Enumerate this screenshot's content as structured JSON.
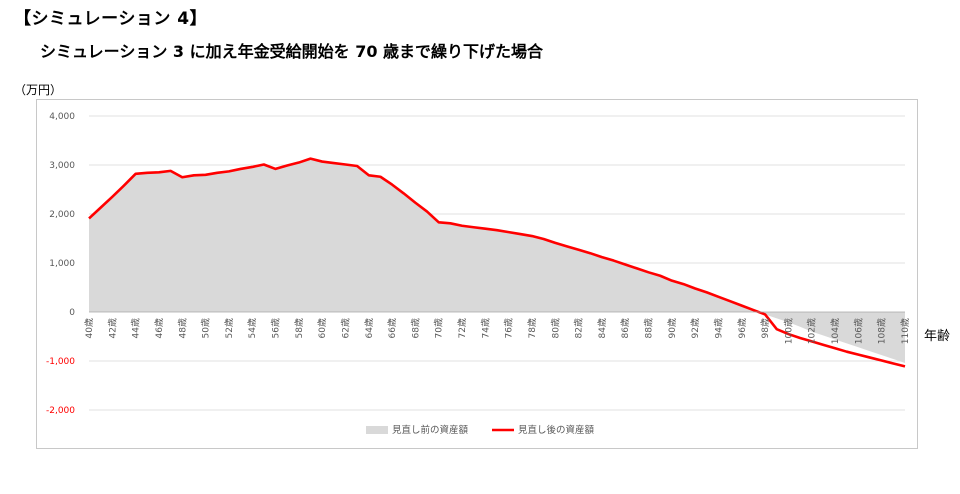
{
  "heading": "【シミュレーション 4】",
  "subheading": "シミュレーション 3 に加え年金受給開始を 70 歳まで繰り下げた場合",
  "chart_data": {
    "type": "area",
    "title": "シミュレーション 3 に加え年金受給開始を 70 歳まで繰り下げた場合",
    "ylabel": "（万円）",
    "xlabel": "年齢",
    "ylim": [
      -2000,
      4000
    ],
    "yticks": [
      4000,
      3000,
      2000,
      1000,
      0,
      -1000,
      -2000
    ],
    "ytick_labels": [
      "4,000",
      "3,000",
      "2,000",
      "1,000",
      "0",
      "-1,000",
      "-2,000"
    ],
    "x": [
      40,
      41,
      42,
      43,
      44,
      45,
      46,
      47,
      48,
      49,
      50,
      51,
      52,
      53,
      54,
      55,
      56,
      57,
      58,
      59,
      60,
      61,
      62,
      63,
      64,
      65,
      66,
      67,
      68,
      69,
      70,
      71,
      72,
      73,
      74,
      75,
      76,
      77,
      78,
      79,
      80,
      81,
      82,
      83,
      84,
      85,
      86,
      87,
      88,
      89,
      90,
      91,
      92,
      93,
      94,
      95,
      96,
      97,
      98,
      99,
      100,
      101,
      102,
      103,
      104,
      105,
      106,
      107,
      108,
      109,
      110
    ],
    "xtick_labels": [
      "40歳",
      "42歳",
      "44歳",
      "46歳",
      "48歳",
      "50歳",
      "52歳",
      "54歳",
      "56歳",
      "58歳",
      "60歳",
      "62歳",
      "64歳",
      "66歳",
      "68歳",
      "70歳",
      "72歳",
      "74歳",
      "76歳",
      "78歳",
      "80歳",
      "82歳",
      "84歳",
      "86歳",
      "88歳",
      "90歳",
      "92歳",
      "94歳",
      "96歳",
      "98歳",
      "100歳",
      "102歳",
      "104歳",
      "106歳",
      "108歳",
      "110歳"
    ],
    "grid": true,
    "legend_position": "bottom",
    "series": [
      {
        "name": "見直し前の資産額",
        "style": "area",
        "color": "#d9d9d9",
        "values": [
          1910,
          2130,
          2350,
          2580,
          2820,
          2840,
          2850,
          2880,
          2750,
          2790,
          2800,
          2840,
          2870,
          2920,
          2960,
          3010,
          2920,
          2990,
          3050,
          3130,
          3070,
          3040,
          3010,
          2980,
          2790,
          2760,
          2600,
          2420,
          2230,
          2050,
          1830,
          1810,
          1760,
          1730,
          1700,
          1670,
          1630,
          1590,
          1550,
          1490,
          1410,
          1340,
          1270,
          1200,
          1120,
          1050,
          970,
          890,
          810,
          740,
          640,
          570,
          480,
          400,
          310,
          220,
          130,
          40,
          -50,
          -130,
          -210,
          -300,
          -400,
          -480,
          -560,
          -640,
          -720,
          -800,
          -880,
          -960,
          -1040
        ]
      },
      {
        "name": "見直し後の資産額",
        "style": "line",
        "color": "#ff0000",
        "values": [
          1910,
          2130,
          2350,
          2580,
          2820,
          2840,
          2850,
          2880,
          2750,
          2790,
          2800,
          2840,
          2870,
          2920,
          2960,
          3010,
          2920,
          2990,
          3050,
          3130,
          3070,
          3040,
          3010,
          2980,
          2790,
          2760,
          2600,
          2420,
          2230,
          2050,
          1830,
          1810,
          1760,
          1730,
          1700,
          1670,
          1630,
          1590,
          1550,
          1490,
          1410,
          1340,
          1270,
          1200,
          1120,
          1050,
          970,
          890,
          810,
          740,
          640,
          570,
          480,
          400,
          310,
          220,
          130,
          40,
          -50,
          -350,
          -450,
          -530,
          -600,
          -670,
          -740,
          -810,
          -870,
          -930,
          -990,
          -1050,
          -1110
        ]
      }
    ]
  }
}
